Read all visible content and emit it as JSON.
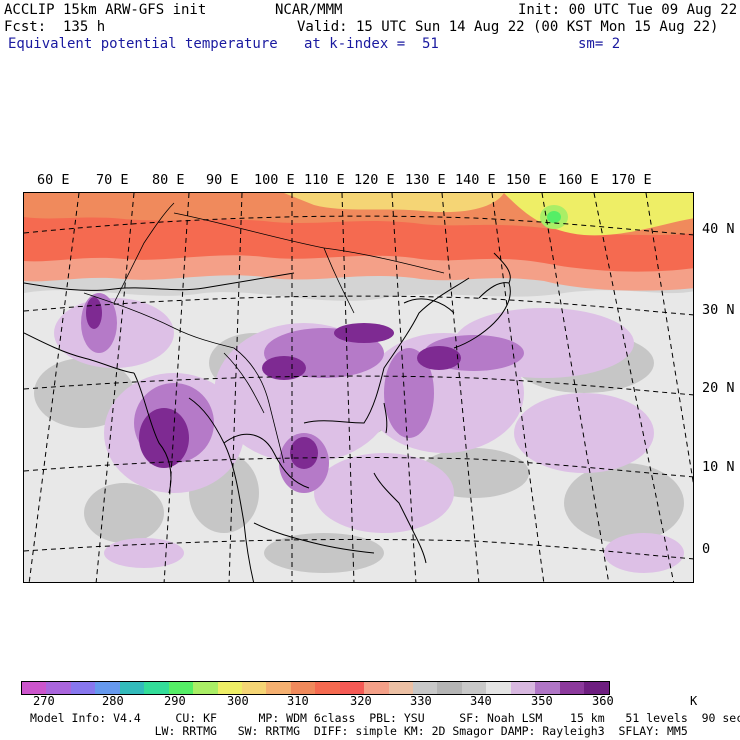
{
  "header": {
    "model_title": "ACCLIP 15km ARW-GFS init",
    "org": "NCAR/MMM",
    "init": "Init: 00 UTC Tue 09 Aug 22",
    "forecast": "Fcst:  135 h",
    "valid": "Valid: 15 UTC Sun 14 Aug 22 (00 KST Mon 15 Aug 22)",
    "field": "Equivalent potential temperature",
    "level": "at k-index =  51",
    "smoothing": "sm= 2"
  },
  "map": {
    "longitude_labels": [
      "60 E",
      "70 E",
      "80 E",
      "90 E",
      "100 E",
      "110 E",
      "120 E",
      "130 E",
      "140 E",
      "150 E",
      "160 E",
      "170 E"
    ],
    "latitude_labels": [
      "40 N",
      "30 N",
      "20 N",
      "10 N",
      "0"
    ],
    "region": "Asia / Western Pacific"
  },
  "colorbar": {
    "unit": "K",
    "tick_labels": [
      "270",
      "280",
      "290",
      "300",
      "310",
      "320",
      "330",
      "340",
      "350",
      "360"
    ],
    "colors": [
      "#cc55cc",
      "#aa66dd",
      "#8877ee",
      "#6699ee",
      "#33bbbb",
      "#33dd99",
      "#55ee66",
      "#aaee66",
      "#eeee66",
      "#f5d575",
      "#f5b070",
      "#f08a5c",
      "#f56a50",
      "#f55a55",
      "#f4a088",
      "#ecc0a4",
      "#c8c8c8",
      "#b4b4b4",
      "#c8c8c8",
      "#e4e4e4",
      "#d8b8e0",
      "#b076c6",
      "#8c3a9c",
      "#6e1e80"
    ]
  },
  "footer": {
    "line1": "Model Info: V4.4     CU: KF      MP: WDM 6class  PBL: YSU     SF: Noah LSM    15 km   51 levels  90 sec",
    "line2": "                  LW: RRTMG   SW: RRTMG  DIFF: simple KM: 2D Smagor DAMP: Rayleigh3  SFLAY: MM5"
  }
}
